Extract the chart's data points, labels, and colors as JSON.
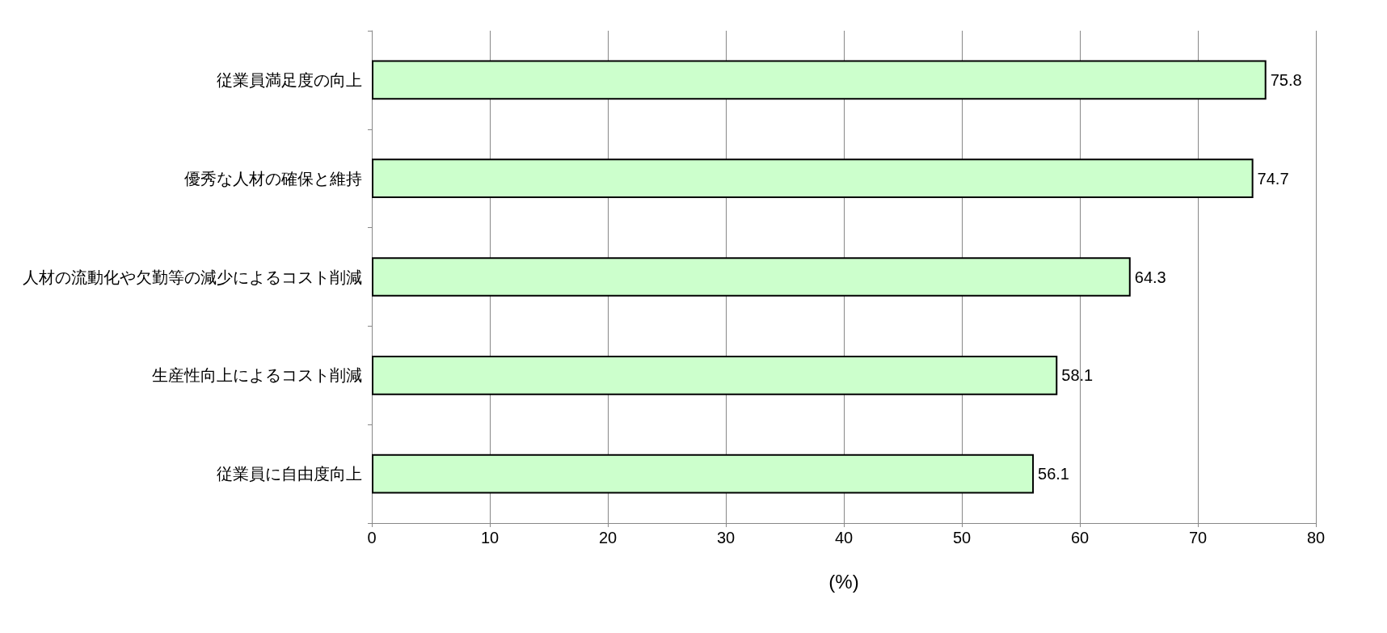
{
  "chart_data": {
    "type": "bar",
    "orientation": "horizontal",
    "categories": [
      "従業員満足度の向上",
      "優秀な人材の確保と維持",
      "人材の流動化や欠勤等の減少によるコスト削減",
      "生産性向上によるコスト削減",
      "従業員に自由度向上"
    ],
    "values": [
      75.8,
      74.7,
      64.3,
      58.1,
      56.1
    ],
    "color": "#ccffcc",
    "xlim": [
      0,
      80
    ],
    "xticks": [
      0,
      10,
      20,
      30,
      40,
      50,
      60,
      70,
      80
    ],
    "xlabel": "(%)",
    "grid": "x",
    "data_labels": true
  }
}
